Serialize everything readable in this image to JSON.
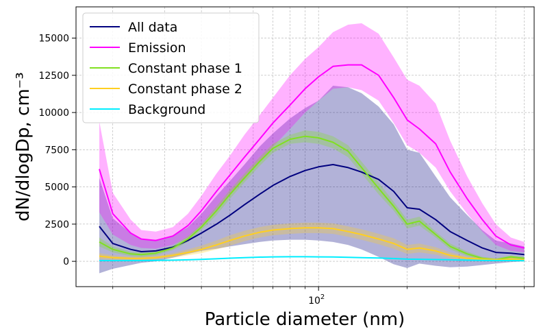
{
  "chart_data": {
    "type": "line",
    "xscale": "log",
    "xlabel": "Particle diameter (nm)",
    "ylabel": "dN/dlogDp, cm⁻³",
    "xlim": [
      15,
      540
    ],
    "ylim": [
      -1700,
      17100
    ],
    "grid": true,
    "legend_position": "top-left",
    "x_ticks": [
      {
        "value": 100,
        "base": "10",
        "exp": "2"
      }
    ],
    "y_ticks": [
      {
        "value": 0,
        "label": "0"
      },
      {
        "value": 2500,
        "label": "2500"
      },
      {
        "value": 5000,
        "label": "5000"
      },
      {
        "value": 7500,
        "label": "7500"
      },
      {
        "value": 10000,
        "label": "10000"
      },
      {
        "value": 12500,
        "label": "12500"
      },
      {
        "value": 15000,
        "label": "15000"
      }
    ],
    "x": [
      18,
      20,
      23,
      25,
      28,
      32,
      36,
      40,
      45,
      50,
      56,
      63,
      70,
      80,
      90,
      100,
      112,
      126,
      140,
      160,
      180,
      200,
      220,
      250,
      280,
      320,
      360,
      400,
      450,
      500
    ],
    "series": [
      {
        "name": "All data",
        "color": "#00007f",
        "mean": [
          2350,
          1200,
          800,
          650,
          700,
          950,
          1400,
          1900,
          2500,
          3100,
          3800,
          4500,
          5100,
          5700,
          6100,
          6350,
          6500,
          6300,
          6000,
          5500,
          4700,
          3600,
          3500,
          2800,
          2000,
          1400,
          900,
          600,
          550,
          450
        ],
        "lower": [
          -800,
          -500,
          -250,
          -100,
          0,
          250,
          500,
          700,
          850,
          1000,
          1150,
          1300,
          1400,
          1450,
          1450,
          1400,
          1300,
          1100,
          800,
          300,
          -200,
          -450,
          -150,
          -300,
          -400,
          -350,
          -250,
          -150,
          -50,
          0
        ],
        "upper": [
          5600,
          2900,
          1900,
          1450,
          1450,
          1700,
          2300,
          3200,
          4400,
          5400,
          6500,
          7700,
          8600,
          9600,
          10300,
          10800,
          11800,
          11700,
          11300,
          10400,
          9200,
          7500,
          7300,
          5700,
          4300,
          3100,
          2100,
          1400,
          1200,
          1000
        ]
      },
      {
        "name": "Emission",
        "color": "#ff00ff",
        "mean": [
          6200,
          3200,
          1900,
          1500,
          1400,
          1700,
          2400,
          3400,
          4700,
          5800,
          7000,
          8200,
          9300,
          10500,
          11600,
          12400,
          13100,
          13200,
          13200,
          12500,
          11000,
          9500,
          8900,
          7900,
          6000,
          4200,
          2800,
          1700,
          1100,
          900
        ],
        "lower": [
          3300,
          1800,
          1100,
          900,
          850,
          1100,
          1600,
          2400,
          3500,
          4500,
          5500,
          6700,
          7700,
          8900,
          10000,
          10800,
          11600,
          11700,
          11500,
          10800,
          9300,
          7800,
          7300,
          6300,
          4700,
          3200,
          2000,
          1100,
          700,
          600
        ],
        "upper": [
          9400,
          4600,
          2800,
          2100,
          2000,
          2300,
          3200,
          4400,
          5900,
          7100,
          8500,
          9800,
          11000,
          12500,
          13600,
          14400,
          15400,
          15900,
          16000,
          15300,
          13700,
          12200,
          11800,
          10600,
          8100,
          5700,
          3900,
          2500,
          1600,
          1300
        ]
      },
      {
        "name": "Constant phase 1",
        "color": "#80e020",
        "mean": [
          1300,
          800,
          500,
          450,
          550,
          900,
          1500,
          2300,
          3400,
          4500,
          5600,
          6700,
          7600,
          8200,
          8400,
          8300,
          8000,
          7400,
          6300,
          4900,
          3700,
          2500,
          2700,
          1800,
          1000,
          500,
          200,
          100,
          300,
          200
        ],
        "lower": [
          1000,
          600,
          350,
          300,
          400,
          750,
          1300,
          2100,
          3100,
          4200,
          5300,
          6400,
          7300,
          7900,
          8000,
          7900,
          7600,
          7000,
          5900,
          4500,
          3400,
          2200,
          2400,
          1600,
          800,
          350,
          100,
          0,
          200,
          100
        ],
        "upper": [
          1600,
          1000,
          650,
          600,
          700,
          1050,
          1700,
          2500,
          3700,
          4800,
          5900,
          7000,
          7900,
          8500,
          8800,
          8700,
          8400,
          7800,
          6700,
          5300,
          4000,
          2800,
          3000,
          2000,
          1200,
          650,
          300,
          200,
          400,
          300
        ]
      },
      {
        "name": "Constant phase 2",
        "color": "#ffcf20",
        "mean": [
          350,
          250,
          200,
          200,
          250,
          400,
          600,
          800,
          1100,
          1400,
          1700,
          1950,
          2100,
          2200,
          2250,
          2250,
          2200,
          2000,
          1800,
          1500,
          1200,
          800,
          900,
          700,
          400,
          200,
          150,
          100,
          150,
          100
        ],
        "lower": [
          150,
          100,
          80,
          80,
          120,
          250,
          400,
          550,
          800,
          1050,
          1350,
          1600,
          1750,
          1850,
          1900,
          1900,
          1850,
          1650,
          1450,
          1150,
          850,
          500,
          600,
          450,
          200,
          80,
          40,
          20,
          60,
          30
        ],
        "upper": [
          550,
          400,
          320,
          320,
          380,
          550,
          800,
          1050,
          1400,
          1750,
          2050,
          2300,
          2450,
          2550,
          2600,
          2600,
          2550,
          2350,
          2150,
          1850,
          1550,
          1100,
          1200,
          950,
          600,
          320,
          260,
          180,
          240,
          170
        ]
      },
      {
        "name": "Background",
        "color": "#00eeff",
        "mean": [
          50,
          50,
          50,
          50,
          60,
          80,
          100,
          130,
          170,
          210,
          250,
          280,
          300,
          310,
          310,
          300,
          290,
          270,
          250,
          220,
          190,
          150,
          140,
          120,
          100,
          80,
          60,
          50,
          50,
          40
        ],
        "lower": [
          20,
          20,
          20,
          20,
          30,
          50,
          70,
          100,
          140,
          180,
          220,
          250,
          270,
          280,
          280,
          270,
          260,
          240,
          220,
          190,
          160,
          120,
          110,
          90,
          70,
          50,
          30,
          20,
          20,
          10
        ],
        "upper": [
          80,
          80,
          80,
          80,
          90,
          110,
          130,
          160,
          200,
          240,
          280,
          310,
          330,
          340,
          340,
          330,
          320,
          300,
          280,
          250,
          220,
          180,
          170,
          150,
          130,
          110,
          90,
          80,
          80,
          70
        ]
      }
    ]
  }
}
